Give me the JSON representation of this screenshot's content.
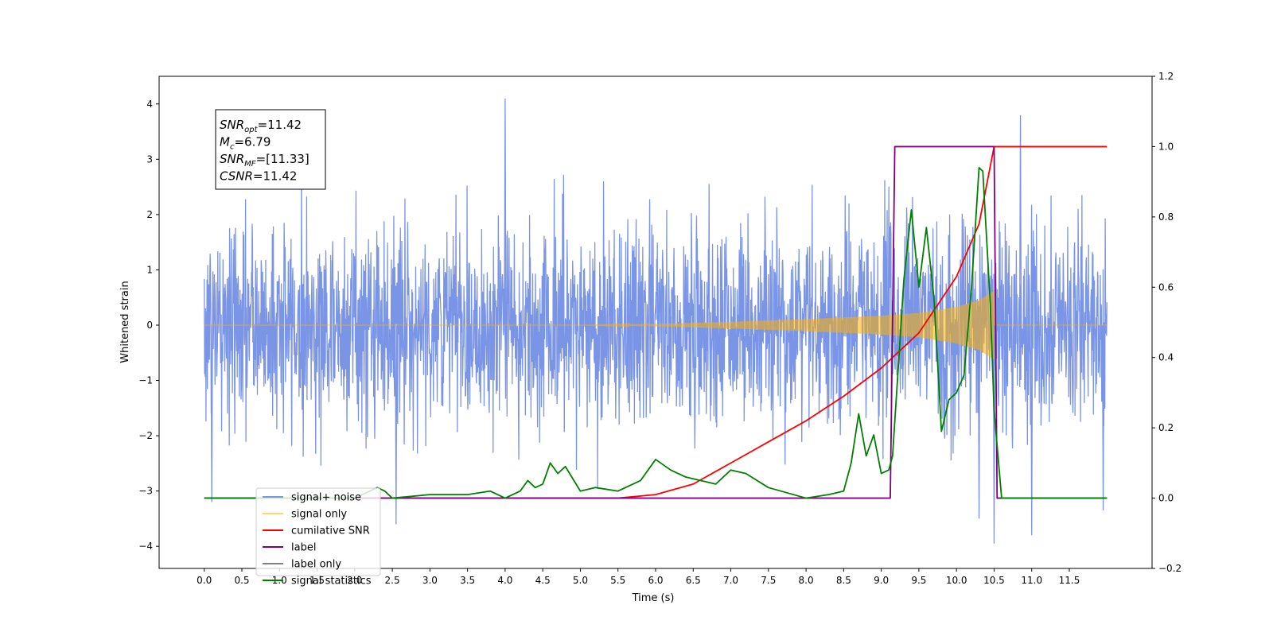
{
  "chart_data": {
    "type": "line",
    "xlabel": "Time (s)",
    "ylabel": "Whitened strain",
    "xlim": [
      -0.6,
      12.6
    ],
    "ylim": [
      -4.4,
      4.5
    ],
    "ylim_right": [
      -0.2,
      1.2
    ],
    "x_ticks": [
      0.0,
      0.5,
      1.0,
      1.5,
      2.0,
      2.5,
      3.0,
      3.5,
      4.0,
      4.5,
      5.0,
      5.5,
      6.0,
      6.5,
      7.0,
      7.5,
      8.0,
      8.5,
      9.0,
      9.5,
      10.0,
      10.5,
      11.0,
      11.5
    ],
    "y_ticks": [
      -4,
      -3,
      -2,
      -1,
      0,
      1,
      2,
      3,
      4
    ],
    "y_ticks_right": [
      -0.2,
      0.0,
      0.2,
      0.4,
      0.6,
      0.8,
      1.0,
      1.2
    ],
    "grid": false,
    "legend_position": "lower-left",
    "annotation": {
      "lines": [
        {
          "base": "SNR",
          "sub": "opt",
          "rest": "=11.42"
        },
        {
          "base": "M",
          "sub": "c",
          "rest": "=6.79"
        },
        {
          "base": "SNR",
          "sub": "MF",
          "rest": "=[11.33]"
        },
        {
          "base": "CSNR",
          "sub": "",
          "rest": "=11.42"
        }
      ]
    },
    "series": [
      {
        "name": "signal+ noise",
        "color": "#7b95e6",
        "axis": "left",
        "kind": "noise",
        "amplitude_sd": 0.9,
        "duration": 12.0,
        "notable_spikes": [
          [
            4.0,
            4.1
          ],
          [
            10.85,
            3.8
          ],
          [
            10.5,
            -3.95
          ],
          [
            11.0,
            -3.8
          ],
          [
            2.55,
            -3.6
          ],
          [
            10.3,
            -3.5
          ],
          [
            0.1,
            -3.2
          ],
          [
            11.95,
            -3.35
          ]
        ]
      },
      {
        "name": "signal only",
        "color": "#ffb000",
        "axis": "left",
        "kind": "chirp",
        "t_merge": 10.5,
        "amplitude_envelope": [
          [
            6.0,
            0.02
          ],
          [
            7.0,
            0.06
          ],
          [
            8.0,
            0.11
          ],
          [
            9.0,
            0.17
          ],
          [
            9.5,
            0.22
          ],
          [
            10.0,
            0.33
          ],
          [
            10.3,
            0.45
          ],
          [
            10.5,
            0.62
          ]
        ]
      },
      {
        "name": "cumilative SNR",
        "color": "#ff0000",
        "axis": "right",
        "x": [
          0.0,
          5.5,
          6.0,
          6.5,
          7.0,
          7.5,
          8.0,
          8.5,
          9.0,
          9.5,
          10.0,
          10.3,
          10.5,
          12.0
        ],
        "values": [
          0.0,
          0.0,
          0.01,
          0.04,
          0.1,
          0.16,
          0.22,
          0.29,
          0.37,
          0.47,
          0.63,
          0.78,
          1.0,
          1.0
        ]
      },
      {
        "name": "label",
        "color": "#800080",
        "axis": "right",
        "x": [
          0.0,
          9.12,
          9.18,
          10.5,
          10.54,
          12.0
        ],
        "values": [
          0.0,
          0.0,
          1.0,
          1.0,
          0.0,
          0.0
        ]
      },
      {
        "name": "label only",
        "color": "#808080",
        "axis": "right",
        "x": [],
        "values": []
      },
      {
        "name": "signal statistics",
        "color": "#008000",
        "axis": "right",
        "x": [
          0.0,
          2.0,
          2.2,
          2.3,
          2.4,
          2.5,
          3.0,
          3.5,
          3.8,
          4.0,
          4.2,
          4.3,
          4.4,
          4.5,
          4.6,
          4.7,
          4.8,
          5.0,
          5.2,
          5.5,
          5.8,
          6.0,
          6.2,
          6.4,
          6.6,
          6.8,
          7.0,
          7.2,
          7.5,
          8.0,
          8.3,
          8.5,
          8.6,
          8.7,
          8.8,
          8.9,
          9.0,
          9.1,
          9.15,
          9.25,
          9.3,
          9.4,
          9.5,
          9.6,
          9.7,
          9.8,
          9.9,
          10.0,
          10.1,
          10.2,
          10.3,
          10.35,
          10.45,
          10.5,
          10.6,
          10.7,
          12.0
        ],
        "values": [
          0.0,
          0.0,
          0.02,
          0.03,
          0.02,
          0.0,
          0.01,
          0.01,
          0.02,
          0.0,
          0.02,
          0.05,
          0.03,
          0.04,
          0.1,
          0.07,
          0.09,
          0.02,
          0.03,
          0.02,
          0.05,
          0.11,
          0.08,
          0.06,
          0.05,
          0.04,
          0.08,
          0.07,
          0.03,
          0.0,
          0.01,
          0.02,
          0.1,
          0.24,
          0.12,
          0.18,
          0.07,
          0.08,
          0.12,
          0.45,
          0.62,
          0.82,
          0.6,
          0.77,
          0.57,
          0.19,
          0.28,
          0.3,
          0.35,
          0.6,
          0.94,
          0.93,
          0.55,
          0.25,
          0.0,
          0.0,
          0.0
        ]
      }
    ]
  }
}
